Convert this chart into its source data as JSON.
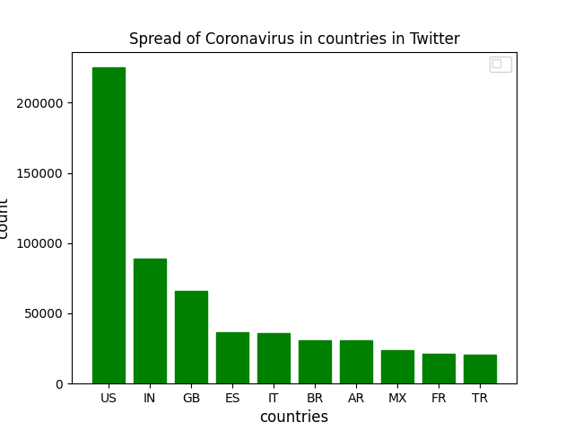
{
  "title": "Spread of Coronavirus in countries in Twitter",
  "xlabel": "countries",
  "ylabel": "count",
  "categories": [
    "US",
    "IN",
    "GB",
    "ES",
    "IT",
    "BR",
    "AR",
    "MX",
    "FR",
    "TR"
  ],
  "values": [
    225000,
    89000,
    66000,
    36500,
    36000,
    31000,
    30500,
    24000,
    21500,
    20500
  ],
  "bar_color": "#008000",
  "background_color": "#ffffff",
  "title_fontsize": 12,
  "label_fontsize": 12
}
